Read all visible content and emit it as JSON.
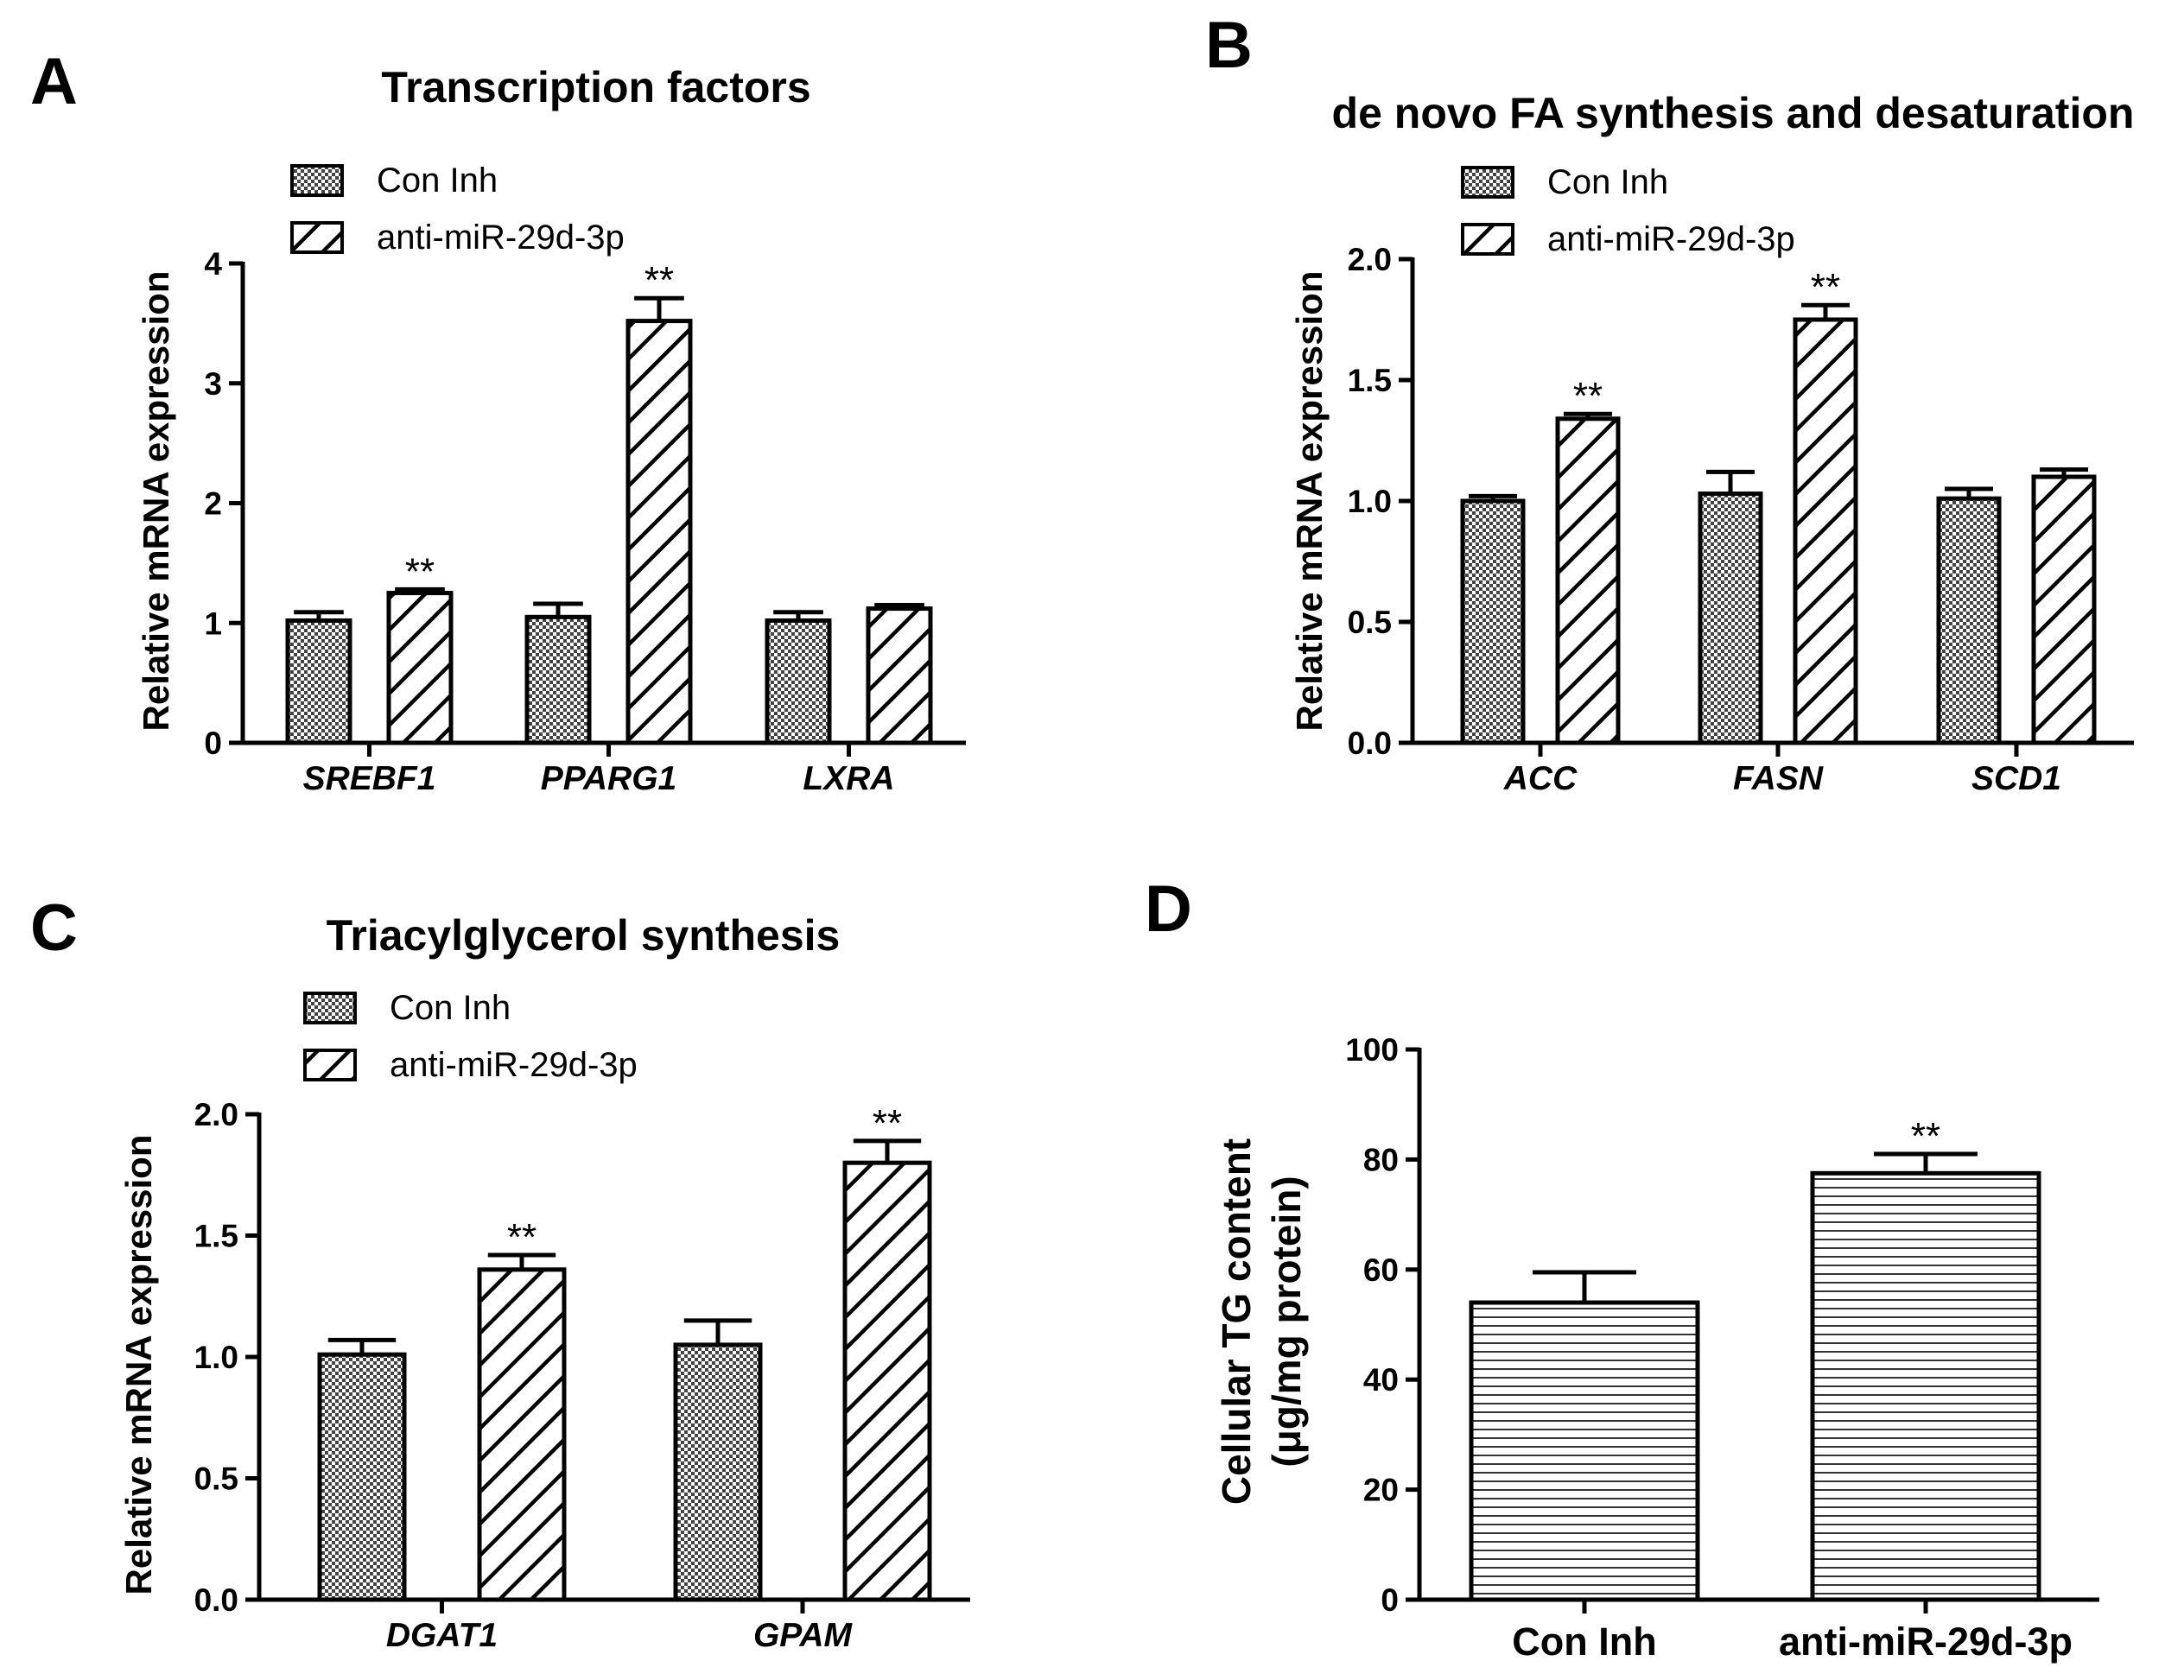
{
  "colors": {
    "ink": "#000000",
    "checker_light": "#ffffff",
    "checker_dark": "#444444",
    "background": "#ffffff"
  },
  "legend": {
    "con": "Con Inh",
    "anti": "anti-miR-29d-3p"
  },
  "chart_data": [
    {
      "panel": "A",
      "type": "bar",
      "title": "Transcription factors",
      "xlabel": "",
      "ylabel": "Relative mRNA expression",
      "ylim": [
        0,
        4
      ],
      "yticks": [
        "0",
        "1",
        "2",
        "3",
        "4"
      ],
      "categories": [
        "SREBF1",
        "PPARG1",
        "LXRA"
      ],
      "series": [
        {
          "name": "Con Inh",
          "pattern": "checker",
          "values": [
            1.02,
            1.05,
            1.02
          ],
          "errors": [
            0.07,
            0.11,
            0.07
          ]
        },
        {
          "name": "anti-miR-29d-3p",
          "pattern": "diagonal",
          "values": [
            1.25,
            3.52,
            1.12
          ],
          "errors": [
            0.03,
            0.19,
            0.03
          ]
        }
      ],
      "significance": [
        "**",
        "**",
        ""
      ]
    },
    {
      "panel": "B",
      "type": "bar",
      "title": "de novo FA synthesis and desaturation",
      "xlabel": "",
      "ylabel": "Relative mRNA expression",
      "ylim": [
        0,
        2
      ],
      "yticks": [
        "0.0",
        "0.5",
        "1.0",
        "1.5",
        "2.0"
      ],
      "categories": [
        "ACC",
        "FASN",
        "SCD1"
      ],
      "series": [
        {
          "name": "Con Inh",
          "pattern": "checker",
          "values": [
            1.0,
            1.03,
            1.01
          ],
          "errors": [
            0.02,
            0.09,
            0.04
          ]
        },
        {
          "name": "anti-miR-29d-3p",
          "pattern": "diagonal",
          "values": [
            1.34,
            1.75,
            1.1
          ],
          "errors": [
            0.02,
            0.06,
            0.03
          ]
        }
      ],
      "significance": [
        "**",
        "**",
        ""
      ]
    },
    {
      "panel": "C",
      "type": "bar",
      "title": "Triacylglycerol synthesis",
      "xlabel": "",
      "ylabel": "Relative mRNA expression",
      "ylim": [
        0,
        2
      ],
      "yticks": [
        "0.0",
        "0.5",
        "1.0",
        "1.5",
        "2.0"
      ],
      "categories": [
        "DGAT1",
        "GPAM"
      ],
      "series": [
        {
          "name": "Con Inh",
          "pattern": "checker",
          "values": [
            1.01,
            1.05
          ],
          "errors": [
            0.06,
            0.1
          ]
        },
        {
          "name": "anti-miR-29d-3p",
          "pattern": "diagonal",
          "values": [
            1.36,
            1.8
          ],
          "errors": [
            0.06,
            0.09
          ]
        }
      ],
      "significance": [
        "**",
        "**"
      ]
    },
    {
      "panel": "D",
      "type": "bar",
      "title": "",
      "xlabel": "",
      "ylabel_lines": [
        "Cellular TG content",
        "(μg/mg protein)"
      ],
      "ylim": [
        0,
        100
      ],
      "yticks": [
        "0",
        "20",
        "40",
        "60",
        "80",
        "100"
      ],
      "categories": [
        "Con Inh",
        "anti-miR-29d-3p"
      ],
      "series": [
        {
          "name": "Cellular TG content",
          "pattern": "horizontal",
          "values": [
            54,
            77.5
          ],
          "errors": [
            5.5,
            3.5
          ]
        }
      ],
      "significance": [
        "",
        "**"
      ]
    }
  ]
}
